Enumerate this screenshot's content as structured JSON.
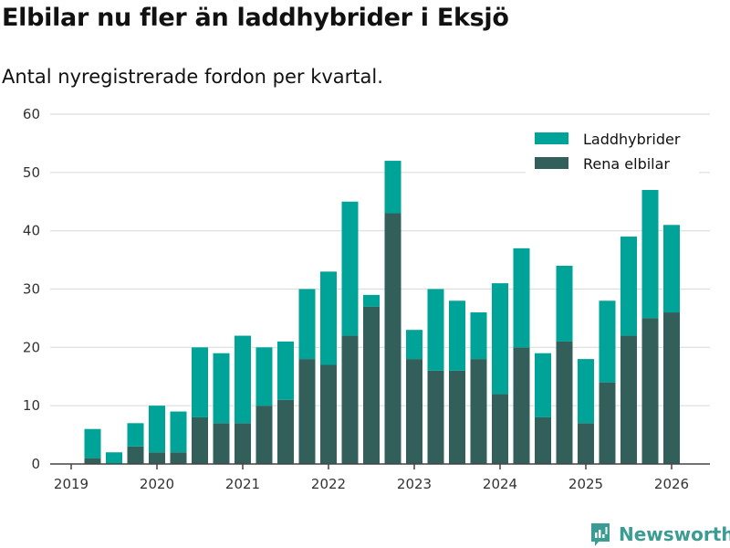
{
  "chart_data": {
    "type": "bar",
    "stacked": true,
    "title": "Elbilar nu fler än laddhybrider i Eksjö",
    "subtitle": "Antal nyregistrerade fordon per kvartal.",
    "xlabel": "",
    "ylabel": "",
    "ylim": [
      0,
      60
    ],
    "yticks": [
      "0",
      "10",
      "20",
      "30",
      "40",
      "50",
      "60"
    ],
    "xticks": [
      "2019",
      "2020",
      "2021",
      "2022",
      "2023",
      "2024",
      "2025",
      "2026"
    ],
    "grid": true,
    "legend_position": "top-right",
    "categories": [
      "2019 Q2",
      "2019 Q3",
      "2019 Q4",
      "2020 Q1",
      "2020 Q2",
      "2020 Q3",
      "2020 Q4",
      "2021 Q1",
      "2021 Q2",
      "2021 Q3",
      "2021 Q4",
      "2022 Q1",
      "2022 Q2",
      "2022 Q3",
      "2022 Q4",
      "2023 Q1",
      "2023 Q2",
      "2023 Q3",
      "2023 Q4",
      "2024 Q1",
      "2024 Q2",
      "2024 Q3",
      "2024 Q4",
      "2025 Q1",
      "2025 Q2",
      "2025 Q3",
      "2025 Q4",
      "2026 Q1"
    ],
    "series": [
      {
        "name": "Rena elbilar",
        "color": "#335f5a",
        "values": [
          1,
          0,
          3,
          2,
          2,
          8,
          7,
          7,
          10,
          11,
          18,
          17,
          22,
          27,
          43,
          18,
          16,
          16,
          18,
          12,
          20,
          8,
          21,
          7,
          14,
          22,
          25,
          26
        ]
      },
      {
        "name": "Laddhybrider",
        "color": "#00a398",
        "values": [
          5,
          2,
          4,
          8,
          7,
          12,
          12,
          15,
          10,
          10,
          12,
          16,
          23,
          2,
          9,
          5,
          14,
          12,
          8,
          19,
          17,
          11,
          13,
          11,
          14,
          17,
          22,
          15
        ]
      }
    ]
  },
  "brand": "Newsworthy"
}
